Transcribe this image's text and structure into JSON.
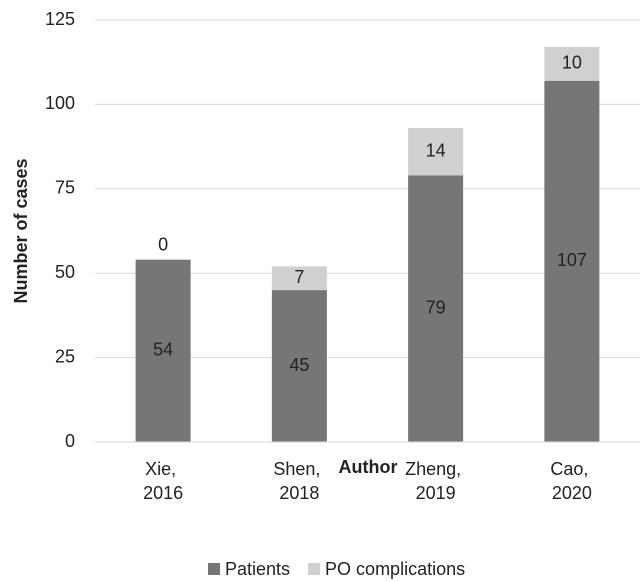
{
  "chart_data": {
    "type": "bar",
    "stacked": true,
    "x_label": "Author",
    "y_label": "Number of cases",
    "categories": [
      "Xie, 2016",
      "Shen, 2018",
      "Zheng, 2019",
      "Cao, 2020"
    ],
    "series": [
      {
        "name": "Patients",
        "color": "#767676",
        "values": [
          54,
          45,
          79,
          107
        ]
      },
      {
        "name": "PO complications",
        "color": "#d0d0d0",
        "values": [
          0,
          7,
          14,
          10
        ]
      }
    ],
    "ylim": [
      0,
      125
    ],
    "yticks": [
      0,
      25,
      50,
      75,
      100,
      125
    ],
    "grid": true,
    "legend": "bottom"
  }
}
